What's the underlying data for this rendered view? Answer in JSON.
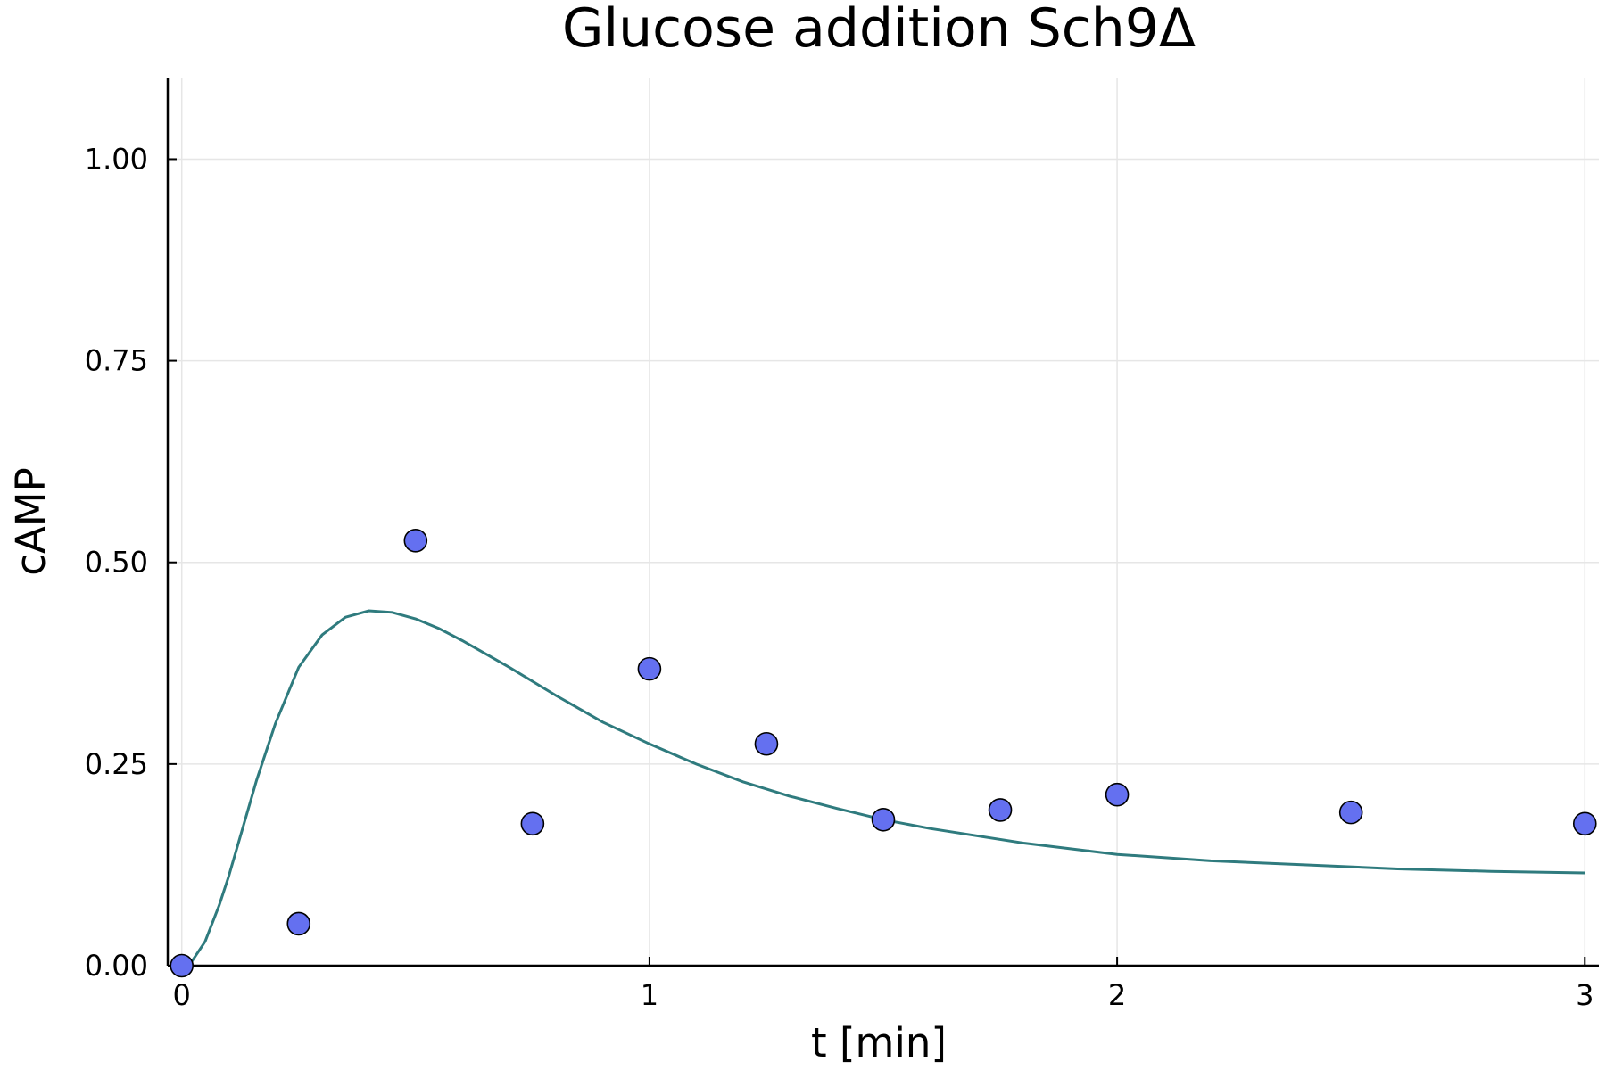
{
  "chart_data": {
    "type": "scatter",
    "title": "Glucose addition Sch9Δ",
    "xlabel": "t [min]",
    "ylabel": "cAMP",
    "xlim": [
      -0.03,
      3.03
    ],
    "ylim": [
      0,
      1.1
    ],
    "xticks": [
      0,
      1,
      2,
      3
    ],
    "xtick_labels": [
      "0",
      "1",
      "2",
      "3"
    ],
    "yticks": [
      0,
      0.25,
      0.5,
      0.75,
      1.0
    ],
    "ytick_labels": [
      "0.00",
      "0.25",
      "0.50",
      "0.75",
      "1.00"
    ],
    "grid": true,
    "legend": "none",
    "colors": {
      "points": "#6470f0",
      "line": "#2f7b7e"
    },
    "series": [
      {
        "type": "scatter",
        "x": [
          0,
          0.25,
          0.5,
          0.75,
          1.0,
          1.25,
          1.5,
          1.75,
          2.0,
          2.5,
          3.0
        ],
        "y": [
          0.0,
          0.052,
          0.527,
          0.176,
          0.368,
          0.275,
          0.181,
          0.193,
          0.212,
          0.19,
          0.176
        ]
      },
      {
        "type": "line",
        "x": [
          0,
          0.02,
          0.05,
          0.08,
          0.1,
          0.13,
          0.16,
          0.2,
          0.25,
          0.3,
          0.35,
          0.4,
          0.45,
          0.5,
          0.55,
          0.6,
          0.7,
          0.8,
          0.9,
          1.0,
          1.1,
          1.2,
          1.3,
          1.4,
          1.5,
          1.6,
          1.8,
          2.0,
          2.2,
          2.4,
          2.6,
          2.8,
          3.0
        ],
        "y": [
          0.0,
          0.004,
          0.03,
          0.075,
          0.11,
          0.17,
          0.23,
          0.3,
          0.37,
          0.41,
          0.432,
          0.44,
          0.438,
          0.43,
          0.418,
          0.403,
          0.37,
          0.335,
          0.302,
          0.275,
          0.25,
          0.228,
          0.21,
          0.195,
          0.181,
          0.17,
          0.152,
          0.138,
          0.13,
          0.125,
          0.12,
          0.117,
          0.115
        ]
      }
    ]
  }
}
